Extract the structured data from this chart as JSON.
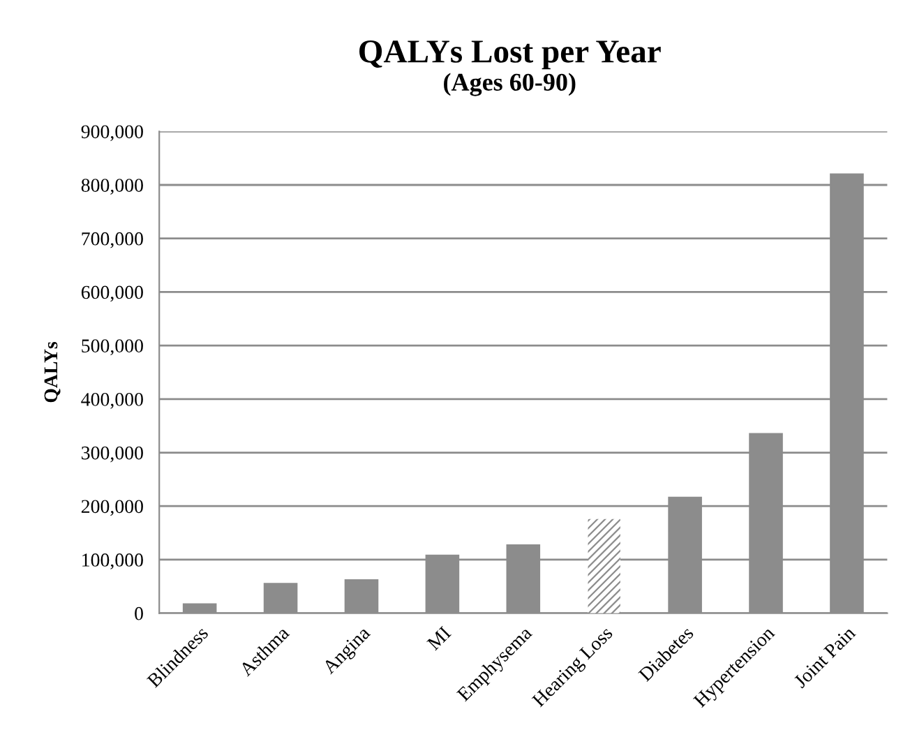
{
  "chart_data": {
    "type": "bar",
    "title": "QALYs Lost per Year",
    "subtitle": "(Ages 60-90)",
    "ylabel": "QALYs",
    "categories": [
      "Blindness",
      "Asthma",
      "Angina",
      "MI",
      "Emphysema",
      "Hearing Loss",
      "Diabetes",
      "Hypertension",
      "Joint Pain"
    ],
    "values": [
      17000,
      55000,
      62000,
      108000,
      127000,
      176000,
      216000,
      335000,
      820000
    ],
    "colors": [
      "#8c8c8c",
      "#8c8c8c",
      "#8c8c8c",
      "#8c8c8c",
      "#8c8c8c",
      "#ffffff",
      "#8c8c8c",
      "#8c8c8c",
      "#8c8c8c"
    ],
    "ylim": [
      0,
      900000
    ],
    "yticks": [
      {
        "value": 0,
        "label": "0"
      },
      {
        "value": 100000,
        "label": "100,000"
      },
      {
        "value": 200000,
        "label": "200,000"
      },
      {
        "value": 300000,
        "label": "300,000"
      },
      {
        "value": 400000,
        "label": "400,000"
      },
      {
        "value": 500000,
        "label": "500,000"
      },
      {
        "value": 600000,
        "label": "600,000"
      },
      {
        "value": 700000,
        "label": "700,000"
      },
      {
        "value": 800000,
        "label": "800,000"
      },
      {
        "value": 900000,
        "label": "900,000"
      }
    ],
    "grid": "y",
    "legend": false
  }
}
